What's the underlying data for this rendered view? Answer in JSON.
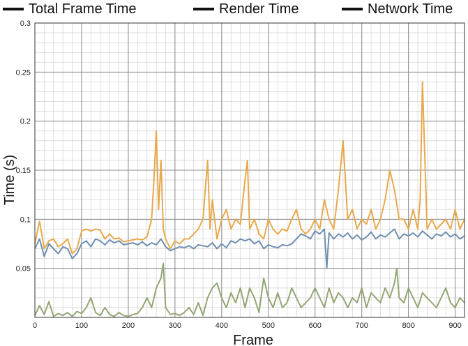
{
  "chart_data": {
    "type": "line",
    "title": "",
    "xlabel": "Frame",
    "ylabel": "Time (s)",
    "xlim": [
      0,
      920
    ],
    "ylim": [
      0,
      0.3
    ],
    "x_ticks": [
      0,
      100,
      200,
      300,
      400,
      500,
      600,
      700,
      800,
      900
    ],
    "y_ticks": [
      0.05,
      0.1,
      0.15,
      0.2,
      0.25,
      0.3
    ],
    "x_tick_labels": [
      "0",
      "100",
      "200",
      "300",
      "400",
      "500",
      "600",
      "700",
      "800",
      "900"
    ],
    "y_tick_labels": [
      "0.05",
      "0.1",
      "0.15",
      "0.2",
      "0.25",
      "0.3"
    ],
    "grid": true,
    "legend_position": "top",
    "series": [
      {
        "name": "Total Frame Time",
        "color": "#E8A94C",
        "x": [
          0,
          10,
          20,
          30,
          40,
          50,
          60,
          70,
          80,
          90,
          100,
          110,
          120,
          130,
          140,
          150,
          160,
          170,
          180,
          190,
          200,
          210,
          220,
          230,
          240,
          250,
          255,
          260,
          265,
          270,
          275,
          280,
          290,
          300,
          310,
          320,
          330,
          340,
          350,
          360,
          370,
          375,
          380,
          390,
          400,
          410,
          420,
          430,
          440,
          450,
          455,
          460,
          470,
          480,
          490,
          500,
          510,
          520,
          530,
          540,
          550,
          560,
          570,
          580,
          590,
          600,
          610,
          620,
          630,
          640,
          650,
          660,
          670,
          680,
          690,
          700,
          710,
          720,
          730,
          740,
          750,
          760,
          770,
          780,
          790,
          800,
          810,
          820,
          825,
          830,
          840,
          850,
          860,
          870,
          880,
          890,
          900,
          910,
          920
        ],
        "y": [
          0.075,
          0.098,
          0.07,
          0.078,
          0.08,
          0.072,
          0.075,
          0.08,
          0.065,
          0.07,
          0.088,
          0.09,
          0.088,
          0.09,
          0.089,
          0.08,
          0.085,
          0.08,
          0.081,
          0.077,
          0.078,
          0.079,
          0.08,
          0.079,
          0.082,
          0.1,
          0.14,
          0.19,
          0.11,
          0.16,
          0.09,
          0.08,
          0.07,
          0.078,
          0.075,
          0.08,
          0.08,
          0.085,
          0.09,
          0.1,
          0.16,
          0.09,
          0.12,
          0.08,
          0.1,
          0.11,
          0.09,
          0.1,
          0.095,
          0.14,
          0.16,
          0.09,
          0.1,
          0.085,
          0.08,
          0.1,
          0.09,
          0.085,
          0.09,
          0.088,
          0.1,
          0.11,
          0.09,
          0.085,
          0.09,
          0.1,
          0.09,
          0.12,
          0.1,
          0.09,
          0.13,
          0.18,
          0.1,
          0.11,
          0.09,
          0.1,
          0.095,
          0.11,
          0.09,
          0.1,
          0.12,
          0.15,
          0.13,
          0.1,
          0.1,
          0.09,
          0.11,
          0.09,
          0.12,
          0.24,
          0.09,
          0.1,
          0.09,
          0.095,
          0.1,
          0.09,
          0.11,
          0.09,
          0.1
        ]
      },
      {
        "name": "Render Time",
        "color": "#6F8FB0",
        "x": [
          0,
          10,
          20,
          30,
          40,
          50,
          60,
          70,
          80,
          90,
          100,
          110,
          120,
          130,
          140,
          150,
          160,
          170,
          180,
          190,
          200,
          210,
          220,
          230,
          240,
          250,
          260,
          270,
          280,
          290,
          300,
          310,
          320,
          330,
          340,
          350,
          360,
          370,
          380,
          390,
          400,
          410,
          420,
          430,
          440,
          450,
          460,
          470,
          480,
          490,
          500,
          510,
          520,
          530,
          540,
          550,
          560,
          570,
          580,
          590,
          600,
          610,
          620,
          625,
          630,
          640,
          650,
          660,
          670,
          680,
          690,
          700,
          710,
          720,
          730,
          740,
          750,
          760,
          770,
          780,
          790,
          800,
          810,
          820,
          830,
          840,
          850,
          860,
          870,
          880,
          890,
          900,
          910,
          920
        ],
        "y": [
          0.07,
          0.08,
          0.062,
          0.075,
          0.07,
          0.065,
          0.072,
          0.07,
          0.06,
          0.065,
          0.075,
          0.078,
          0.072,
          0.08,
          0.078,
          0.074,
          0.079,
          0.076,
          0.078,
          0.074,
          0.075,
          0.076,
          0.074,
          0.077,
          0.073,
          0.076,
          0.074,
          0.08,
          0.072,
          0.068,
          0.07,
          0.072,
          0.071,
          0.073,
          0.07,
          0.074,
          0.073,
          0.072,
          0.076,
          0.07,
          0.075,
          0.071,
          0.078,
          0.076,
          0.08,
          0.078,
          0.08,
          0.075,
          0.078,
          0.07,
          0.074,
          0.072,
          0.071,
          0.074,
          0.073,
          0.075,
          0.08,
          0.085,
          0.083,
          0.08,
          0.088,
          0.085,
          0.09,
          0.05,
          0.086,
          0.08,
          0.085,
          0.082,
          0.086,
          0.08,
          0.084,
          0.079,
          0.082,
          0.087,
          0.08,
          0.084,
          0.082,
          0.086,
          0.09,
          0.08,
          0.085,
          0.083,
          0.086,
          0.082,
          0.088,
          0.084,
          0.08,
          0.085,
          0.083,
          0.087,
          0.082,
          0.085,
          0.08,
          0.083
        ]
      },
      {
        "name": "Network Time",
        "color": "#93A674",
        "x": [
          0,
          10,
          20,
          30,
          40,
          50,
          60,
          70,
          80,
          90,
          100,
          110,
          120,
          130,
          140,
          150,
          160,
          170,
          180,
          190,
          200,
          210,
          220,
          230,
          240,
          250,
          260,
          270,
          275,
          280,
          290,
          300,
          310,
          320,
          330,
          340,
          350,
          360,
          370,
          380,
          390,
          400,
          410,
          420,
          430,
          440,
          450,
          460,
          470,
          480,
          490,
          500,
          510,
          520,
          530,
          540,
          550,
          560,
          570,
          580,
          590,
          600,
          610,
          620,
          630,
          640,
          650,
          660,
          670,
          680,
          690,
          700,
          710,
          720,
          730,
          740,
          750,
          760,
          770,
          775,
          780,
          790,
          800,
          810,
          820,
          830,
          840,
          850,
          860,
          870,
          880,
          890,
          900,
          910,
          920
        ],
        "y": [
          0.002,
          0.012,
          0.003,
          0.016,
          0.001,
          0.004,
          0.002,
          0.005,
          0.001,
          0.006,
          0.004,
          0.01,
          0.02,
          0.005,
          0.002,
          0.01,
          0.003,
          0.001,
          0.005,
          0.002,
          0.001,
          0.003,
          0.004,
          0.01,
          0.02,
          0.01,
          0.03,
          0.04,
          0.055,
          0.01,
          0.003,
          0.004,
          0.002,
          0.005,
          0.01,
          0.003,
          0.015,
          0.002,
          0.02,
          0.03,
          0.035,
          0.02,
          0.01,
          0.025,
          0.015,
          0.03,
          0.01,
          0.03,
          0.02,
          0.005,
          0.04,
          0.02,
          0.01,
          0.025,
          0.01,
          0.015,
          0.03,
          0.02,
          0.01,
          0.015,
          0.02,
          0.03,
          0.02,
          0.01,
          0.03,
          0.015,
          0.025,
          0.02,
          0.01,
          0.02,
          0.015,
          0.03,
          0.01,
          0.025,
          0.02,
          0.015,
          0.03,
          0.02,
          0.035,
          0.05,
          0.02,
          0.015,
          0.03,
          0.02,
          0.01,
          0.025,
          0.02,
          0.015,
          0.01,
          0.02,
          0.03,
          0.015,
          0.01,
          0.02,
          0.015
        ]
      }
    ]
  }
}
